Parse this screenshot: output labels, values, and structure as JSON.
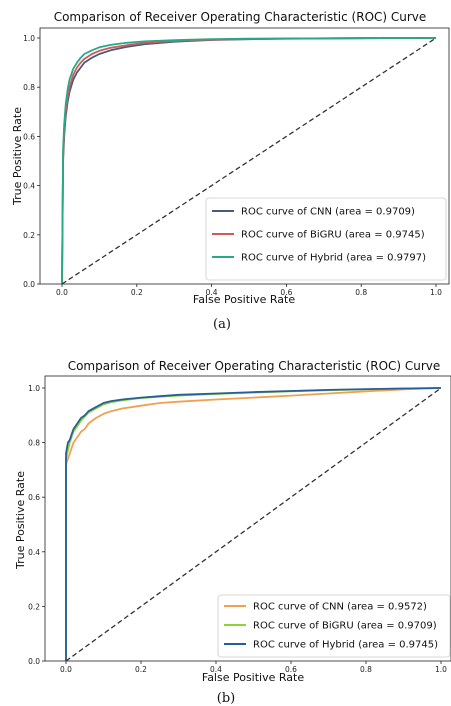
{
  "chart_data": [
    {
      "type": "line",
      "title": "Comparison of Receiver Operating Characteristic (ROC) Curve",
      "xlabel": "False Positive Rate",
      "ylabel": "True Positive Rate",
      "xlim": [
        0,
        1
      ],
      "ylim": [
        0,
        1
      ],
      "xticks": [
        "0.0",
        "0.2",
        "0.4",
        "0.6",
        "0.8",
        "1.0"
      ],
      "yticks": [
        "0.0",
        "0.2",
        "0.4",
        "0.6",
        "0.8",
        "1.0"
      ],
      "grid": false,
      "legend_position": "bottom-right",
      "caption": "(a)",
      "series": [
        {
          "name": "ROC curve of CNN (area = 0.9709)",
          "color": "#4a5a78",
          "x": [
            0,
            0.003,
            0.006,
            0.01,
            0.015,
            0.02,
            0.03,
            0.04,
            0.05,
            0.06,
            0.08,
            0.1,
            0.13,
            0.17,
            0.22,
            0.3,
            0.4,
            0.5,
            0.6,
            0.8,
            1.0
          ],
          "y": [
            0,
            0.5,
            0.6,
            0.68,
            0.74,
            0.78,
            0.83,
            0.86,
            0.88,
            0.9,
            0.92,
            0.935,
            0.95,
            0.963,
            0.975,
            0.985,
            0.992,
            0.995,
            0.997,
            0.999,
            1.0
          ]
        },
        {
          "name": "ROC curve of BiGRU (area = 0.9745)",
          "color": "#d05a5a",
          "x": [
            0,
            0.003,
            0.006,
            0.01,
            0.015,
            0.02,
            0.03,
            0.04,
            0.05,
            0.06,
            0.08,
            0.1,
            0.13,
            0.17,
            0.22,
            0.3,
            0.4,
            0.5,
            0.6,
            0.8,
            1.0
          ],
          "y": [
            0,
            0.52,
            0.62,
            0.7,
            0.76,
            0.8,
            0.85,
            0.88,
            0.9,
            0.915,
            0.935,
            0.948,
            0.96,
            0.97,
            0.98,
            0.988,
            0.993,
            0.996,
            0.998,
            0.999,
            1.0
          ]
        },
        {
          "name": "ROC curve of Hybrid (area = 0.9797)",
          "color": "#27a888",
          "x": [
            0,
            0.003,
            0.006,
            0.01,
            0.015,
            0.02,
            0.03,
            0.04,
            0.05,
            0.06,
            0.08,
            0.1,
            0.13,
            0.17,
            0.22,
            0.3,
            0.4,
            0.5,
            0.6,
            0.8,
            1.0
          ],
          "y": [
            0,
            0.55,
            0.65,
            0.73,
            0.79,
            0.83,
            0.875,
            0.9,
            0.92,
            0.935,
            0.95,
            0.962,
            0.972,
            0.98,
            0.986,
            0.991,
            0.995,
            0.997,
            0.998,
            0.999,
            1.0
          ]
        },
        {
          "name": "",
          "color": "#333333",
          "dashed": true,
          "x": [
            0,
            1
          ],
          "y": [
            0,
            1
          ]
        }
      ]
    },
    {
      "type": "line",
      "title": "Comparison of Receiver Operating Characteristic (ROC) Curve",
      "xlabel": "False Positive Rate",
      "ylabel": "True Positive Rate",
      "xlim": [
        0,
        1
      ],
      "ylim": [
        0,
        1
      ],
      "xticks": [
        "0.0",
        "0.2",
        "0.4",
        "0.6",
        "0.8",
        "1.0"
      ],
      "yticks": [
        "0.0",
        "0.2",
        "0.4",
        "0.6",
        "0.8",
        "1.0"
      ],
      "grid": false,
      "legend_position": "bottom-right",
      "caption": "(b)",
      "series": [
        {
          "name": "ROC curve of CNN (area = 0.9572)",
          "color": "#f0a050",
          "x": [
            0,
            0.0,
            0.005,
            0.01,
            0.015,
            0.02,
            0.03,
            0.04,
            0.05,
            0.06,
            0.08,
            0.1,
            0.12,
            0.15,
            0.2,
            0.25,
            0.3,
            0.4,
            0.5,
            0.6,
            0.7,
            0.8,
            0.9,
            1.0
          ],
          "y": [
            0,
            0.72,
            0.74,
            0.76,
            0.78,
            0.8,
            0.82,
            0.84,
            0.85,
            0.87,
            0.89,
            0.905,
            0.915,
            0.925,
            0.935,
            0.945,
            0.95,
            0.958,
            0.965,
            0.972,
            0.98,
            0.988,
            0.995,
            1.0
          ]
        },
        {
          "name": "ROC curve of BiGRU (area = 0.9709)",
          "color": "#8ad63a",
          "x": [
            0,
            0.0,
            0.005,
            0.01,
            0.015,
            0.02,
            0.03,
            0.04,
            0.05,
            0.06,
            0.08,
            0.1,
            0.12,
            0.15,
            0.2,
            0.25,
            0.3,
            0.4,
            0.5,
            0.6,
            0.7,
            0.8,
            0.9,
            1.0
          ],
          "y": [
            0,
            0.74,
            0.77,
            0.8,
            0.82,
            0.84,
            0.86,
            0.88,
            0.895,
            0.91,
            0.925,
            0.94,
            0.948,
            0.955,
            0.963,
            0.968,
            0.972,
            0.978,
            0.983,
            0.988,
            0.992,
            0.995,
            0.998,
            1.0
          ]
        },
        {
          "name": "ROC curve of Hybrid (area = 0.9745)",
          "color": "#2a5c9a",
          "x": [
            0,
            0.0,
            0.005,
            0.01,
            0.015,
            0.02,
            0.03,
            0.04,
            0.05,
            0.06,
            0.08,
            0.1,
            0.12,
            0.15,
            0.2,
            0.25,
            0.3,
            0.4,
            0.5,
            0.6,
            0.7,
            0.8,
            0.9,
            1.0
          ],
          "y": [
            0,
            0.76,
            0.8,
            0.81,
            0.83,
            0.85,
            0.87,
            0.89,
            0.9,
            0.915,
            0.93,
            0.945,
            0.952,
            0.958,
            0.965,
            0.97,
            0.975,
            0.98,
            0.985,
            0.989,
            0.993,
            0.996,
            0.998,
            1.0
          ]
        },
        {
          "name": "",
          "color": "#333333",
          "dashed": true,
          "x": [
            0,
            1
          ],
          "y": [
            0,
            1
          ]
        }
      ]
    }
  ]
}
